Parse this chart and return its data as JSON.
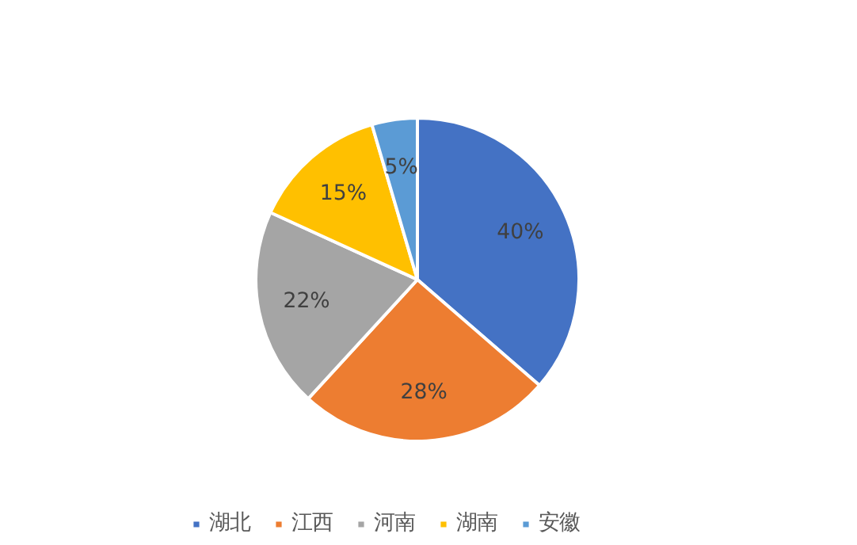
{
  "chart_data": {
    "type": "pie",
    "categories": [
      "湖北",
      "江西",
      "河南",
      "湖南",
      "安徽"
    ],
    "values": [
      40,
      28,
      22,
      15,
      5
    ],
    "colors": [
      "#4472c4",
      "#ed7d31",
      "#a5a5a5",
      "#ffc000",
      "#5b9bd5"
    ],
    "value_labels": [
      "40%",
      "28%",
      "22%",
      "15%",
      "5%"
    ],
    "legend": "bottom"
  }
}
